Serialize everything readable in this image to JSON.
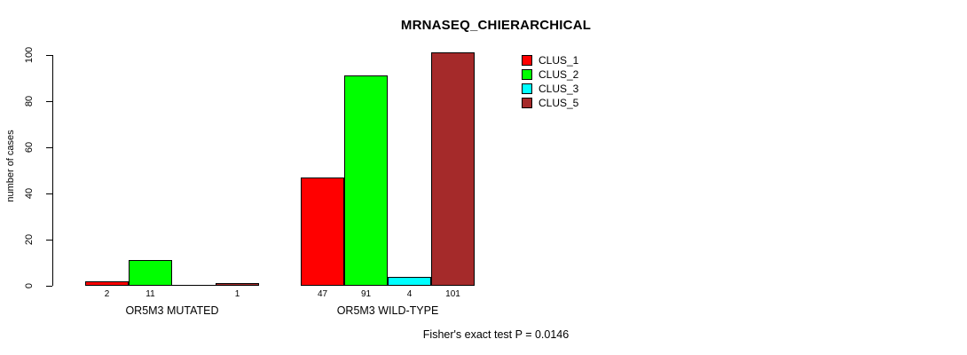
{
  "chart_data": {
    "type": "bar",
    "title": "MRNASEQ_CHIERARCHICAL",
    "ylabel": "number of cases",
    "xlabel": "",
    "ylim": [
      0,
      100
    ],
    "yticks": [
      0,
      20,
      40,
      60,
      80,
      100
    ],
    "grid": false,
    "legend_position": "top-right",
    "background": "#FFFFFF",
    "bar_border_color": "#000000",
    "categories": [
      "OR5M3 MUTATED",
      "OR5M3 WILD-TYPE"
    ],
    "series": [
      {
        "name": "CLUS_1",
        "color": "#FF0000",
        "values": [
          2,
          47
        ]
      },
      {
        "name": "CLUS_2",
        "color": "#00FF00",
        "values": [
          11,
          91
        ]
      },
      {
        "name": "CLUS_3",
        "color": "#00FFFF",
        "values": [
          0,
          4
        ]
      },
      {
        "name": "CLUS_5",
        "color": "#A52A2A",
        "values": [
          1,
          101
        ]
      }
    ],
    "bar_value_labels": [
      [
        "2",
        "11",
        "",
        "1"
      ],
      [
        "47",
        "91",
        "4",
        "101"
      ]
    ],
    "footnote": "Fisher's exact test P = 0.0146"
  }
}
